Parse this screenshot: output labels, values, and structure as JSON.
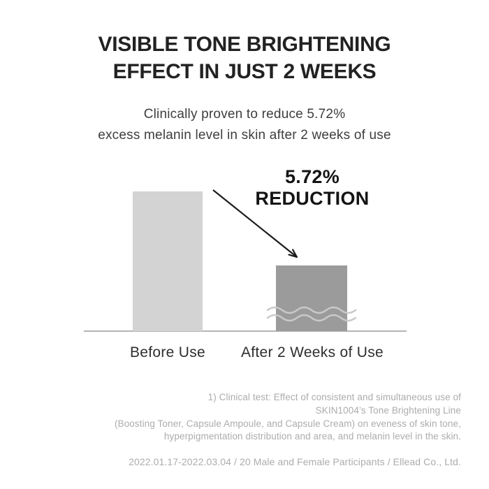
{
  "header": {
    "title_line1": "VISIBLE TONE BRIGHTENING",
    "title_line2": "EFFECT IN JUST 2 WEEKS",
    "subtitle_line1": "Clinically proven to reduce 5.72%",
    "subtitle_line2": "excess melanin level in skin after 2 weeks of use"
  },
  "chart_data": {
    "type": "bar",
    "categories": [
      "Before Use",
      "After 2 Weeks of Use"
    ],
    "values": [
      100,
      47
    ],
    "values_note": "relative bar heights estimated from pixels; no numeric axis shown",
    "annotation": {
      "value": "5.72%",
      "label": "REDUCTION"
    },
    "title": "",
    "xlabel": "",
    "ylabel": "",
    "grid": false,
    "legend": false,
    "colors": {
      "before_bar": "#d3d3d4",
      "after_bar": "#9b9b9c",
      "baseline": "#b5b5b5",
      "wave": "#c9c9c9",
      "arrow": "#1c1c1c"
    }
  },
  "footnote": {
    "lines": [
      "1) Clinical test: Effect of consistent and simultaneous use of",
      "SKIN1004’s Tone Brightening Line",
      "(Boosting Toner, Capsule Ampoule, and Capsule Cream) on eveness of skin tone,",
      "hyperpigmentation distribution and area, and melanin level in the skin."
    ],
    "meta": "2022.01.17-2022.03.04 / 20 Male and Female Participants / Ellead Co., Ltd."
  }
}
